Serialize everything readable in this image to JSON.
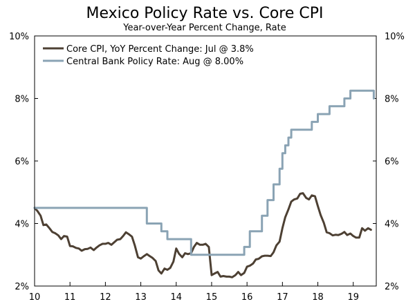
{
  "chart_data": {
    "type": "line",
    "title": "Mexico Policy Rate vs. Core CPI",
    "subtitle": "Year-over-Year Percent Change, Rate",
    "xlabel": "",
    "ylabel": "",
    "xlim": [
      2010,
      2019.65
    ],
    "ylim": [
      2,
      10
    ],
    "x_ticks": [
      {
        "value": 2010,
        "label": "10"
      },
      {
        "value": 2011,
        "label": "11"
      },
      {
        "value": 2012,
        "label": "12"
      },
      {
        "value": 2013,
        "label": "13"
      },
      {
        "value": 2014,
        "label": "14"
      },
      {
        "value": 2015,
        "label": "15"
      },
      {
        "value": 2016,
        "label": "16"
      },
      {
        "value": 2017,
        "label": "17"
      },
      {
        "value": 2018,
        "label": "18"
      },
      {
        "value": 2019,
        "label": "19"
      }
    ],
    "y_ticks": [
      {
        "value": 2,
        "label": "2%"
      },
      {
        "value": 4,
        "label": "4%"
      },
      {
        "value": 6,
        "label": "6%"
      },
      {
        "value": 8,
        "label": "8%"
      },
      {
        "value": 10,
        "label": "10%"
      }
    ],
    "legend_position": "top-left",
    "series": [
      {
        "name": "Core CPI, YoY Percent Change: Jul @ 3.8%",
        "color": "#4d4033",
        "step": false,
        "points": [
          [
            2010.0,
            4.5
          ],
          [
            2010.08,
            4.4
          ],
          [
            2010.17,
            4.25
          ],
          [
            2010.25,
            3.95
          ],
          [
            2010.33,
            3.97
          ],
          [
            2010.42,
            3.85
          ],
          [
            2010.5,
            3.73
          ],
          [
            2010.58,
            3.69
          ],
          [
            2010.67,
            3.62
          ],
          [
            2010.75,
            3.5
          ],
          [
            2010.83,
            3.6
          ],
          [
            2010.92,
            3.58
          ],
          [
            2011.0,
            3.28
          ],
          [
            2011.08,
            3.27
          ],
          [
            2011.17,
            3.22
          ],
          [
            2011.25,
            3.2
          ],
          [
            2011.33,
            3.13
          ],
          [
            2011.42,
            3.18
          ],
          [
            2011.5,
            3.19
          ],
          [
            2011.58,
            3.23
          ],
          [
            2011.67,
            3.15
          ],
          [
            2011.75,
            3.23
          ],
          [
            2011.83,
            3.3
          ],
          [
            2011.92,
            3.35
          ],
          [
            2012.0,
            3.35
          ],
          [
            2012.08,
            3.38
          ],
          [
            2012.17,
            3.32
          ],
          [
            2012.25,
            3.4
          ],
          [
            2012.33,
            3.48
          ],
          [
            2012.42,
            3.5
          ],
          [
            2012.5,
            3.6
          ],
          [
            2012.58,
            3.72
          ],
          [
            2012.67,
            3.65
          ],
          [
            2012.75,
            3.58
          ],
          [
            2012.83,
            3.3
          ],
          [
            2012.92,
            2.92
          ],
          [
            2013.0,
            2.88
          ],
          [
            2013.08,
            2.95
          ],
          [
            2013.17,
            3.02
          ],
          [
            2013.25,
            2.96
          ],
          [
            2013.33,
            2.9
          ],
          [
            2013.42,
            2.8
          ],
          [
            2013.5,
            2.5
          ],
          [
            2013.58,
            2.4
          ],
          [
            2013.67,
            2.56
          ],
          [
            2013.75,
            2.52
          ],
          [
            2013.83,
            2.58
          ],
          [
            2013.92,
            2.78
          ],
          [
            2014.0,
            3.2
          ],
          [
            2014.08,
            3.03
          ],
          [
            2014.17,
            2.92
          ],
          [
            2014.25,
            3.05
          ],
          [
            2014.33,
            3.02
          ],
          [
            2014.42,
            3.05
          ],
          [
            2014.5,
            3.25
          ],
          [
            2014.58,
            3.38
          ],
          [
            2014.67,
            3.32
          ],
          [
            2014.75,
            3.32
          ],
          [
            2014.83,
            3.35
          ],
          [
            2014.92,
            3.25
          ],
          [
            2015.0,
            2.35
          ],
          [
            2015.08,
            2.4
          ],
          [
            2015.17,
            2.45
          ],
          [
            2015.25,
            2.3
          ],
          [
            2015.33,
            2.32
          ],
          [
            2015.42,
            2.3
          ],
          [
            2015.5,
            2.3
          ],
          [
            2015.58,
            2.28
          ],
          [
            2015.67,
            2.35
          ],
          [
            2015.75,
            2.45
          ],
          [
            2015.83,
            2.35
          ],
          [
            2015.92,
            2.42
          ],
          [
            2016.0,
            2.62
          ],
          [
            2016.08,
            2.65
          ],
          [
            2016.17,
            2.72
          ],
          [
            2016.25,
            2.85
          ],
          [
            2016.33,
            2.87
          ],
          [
            2016.42,
            2.95
          ],
          [
            2016.5,
            2.97
          ],
          [
            2016.58,
            2.97
          ],
          [
            2016.67,
            2.96
          ],
          [
            2016.75,
            3.08
          ],
          [
            2016.83,
            3.3
          ],
          [
            2016.92,
            3.42
          ],
          [
            2017.0,
            3.85
          ],
          [
            2017.08,
            4.2
          ],
          [
            2017.17,
            4.45
          ],
          [
            2017.25,
            4.7
          ],
          [
            2017.33,
            4.77
          ],
          [
            2017.42,
            4.8
          ],
          [
            2017.5,
            4.95
          ],
          [
            2017.58,
            4.97
          ],
          [
            2017.67,
            4.82
          ],
          [
            2017.75,
            4.77
          ],
          [
            2017.83,
            4.9
          ],
          [
            2017.92,
            4.87
          ],
          [
            2018.0,
            4.56
          ],
          [
            2018.08,
            4.27
          ],
          [
            2018.17,
            4.02
          ],
          [
            2018.25,
            3.72
          ],
          [
            2018.33,
            3.69
          ],
          [
            2018.42,
            3.62
          ],
          [
            2018.5,
            3.64
          ],
          [
            2018.58,
            3.63
          ],
          [
            2018.67,
            3.67
          ],
          [
            2018.75,
            3.73
          ],
          [
            2018.83,
            3.63
          ],
          [
            2018.92,
            3.68
          ],
          [
            2019.0,
            3.6
          ],
          [
            2019.08,
            3.55
          ],
          [
            2019.17,
            3.55
          ],
          [
            2019.25,
            3.85
          ],
          [
            2019.33,
            3.77
          ],
          [
            2019.42,
            3.85
          ],
          [
            2019.5,
            3.8
          ]
        ]
      },
      {
        "name": "Central Bank Policy Rate: Aug @ 8.00%",
        "color": "#8aa3b4",
        "step": true,
        "points": [
          [
            2010.0,
            4.5
          ],
          [
            2013.17,
            4.0
          ],
          [
            2013.58,
            3.75
          ],
          [
            2013.75,
            3.5
          ],
          [
            2014.42,
            3.0
          ],
          [
            2015.92,
            3.25
          ],
          [
            2016.08,
            3.75
          ],
          [
            2016.42,
            4.25
          ],
          [
            2016.58,
            4.75
          ],
          [
            2016.75,
            5.25
          ],
          [
            2016.92,
            5.75
          ],
          [
            2017.0,
            6.25
          ],
          [
            2017.08,
            6.5
          ],
          [
            2017.17,
            6.75
          ],
          [
            2017.25,
            7.0
          ],
          [
            2017.83,
            7.25
          ],
          [
            2018.0,
            7.5
          ],
          [
            2018.33,
            7.75
          ],
          [
            2018.75,
            8.0
          ],
          [
            2018.92,
            8.25
          ],
          [
            2019.5,
            8.25
          ],
          [
            2019.58,
            8.0
          ]
        ]
      }
    ]
  }
}
